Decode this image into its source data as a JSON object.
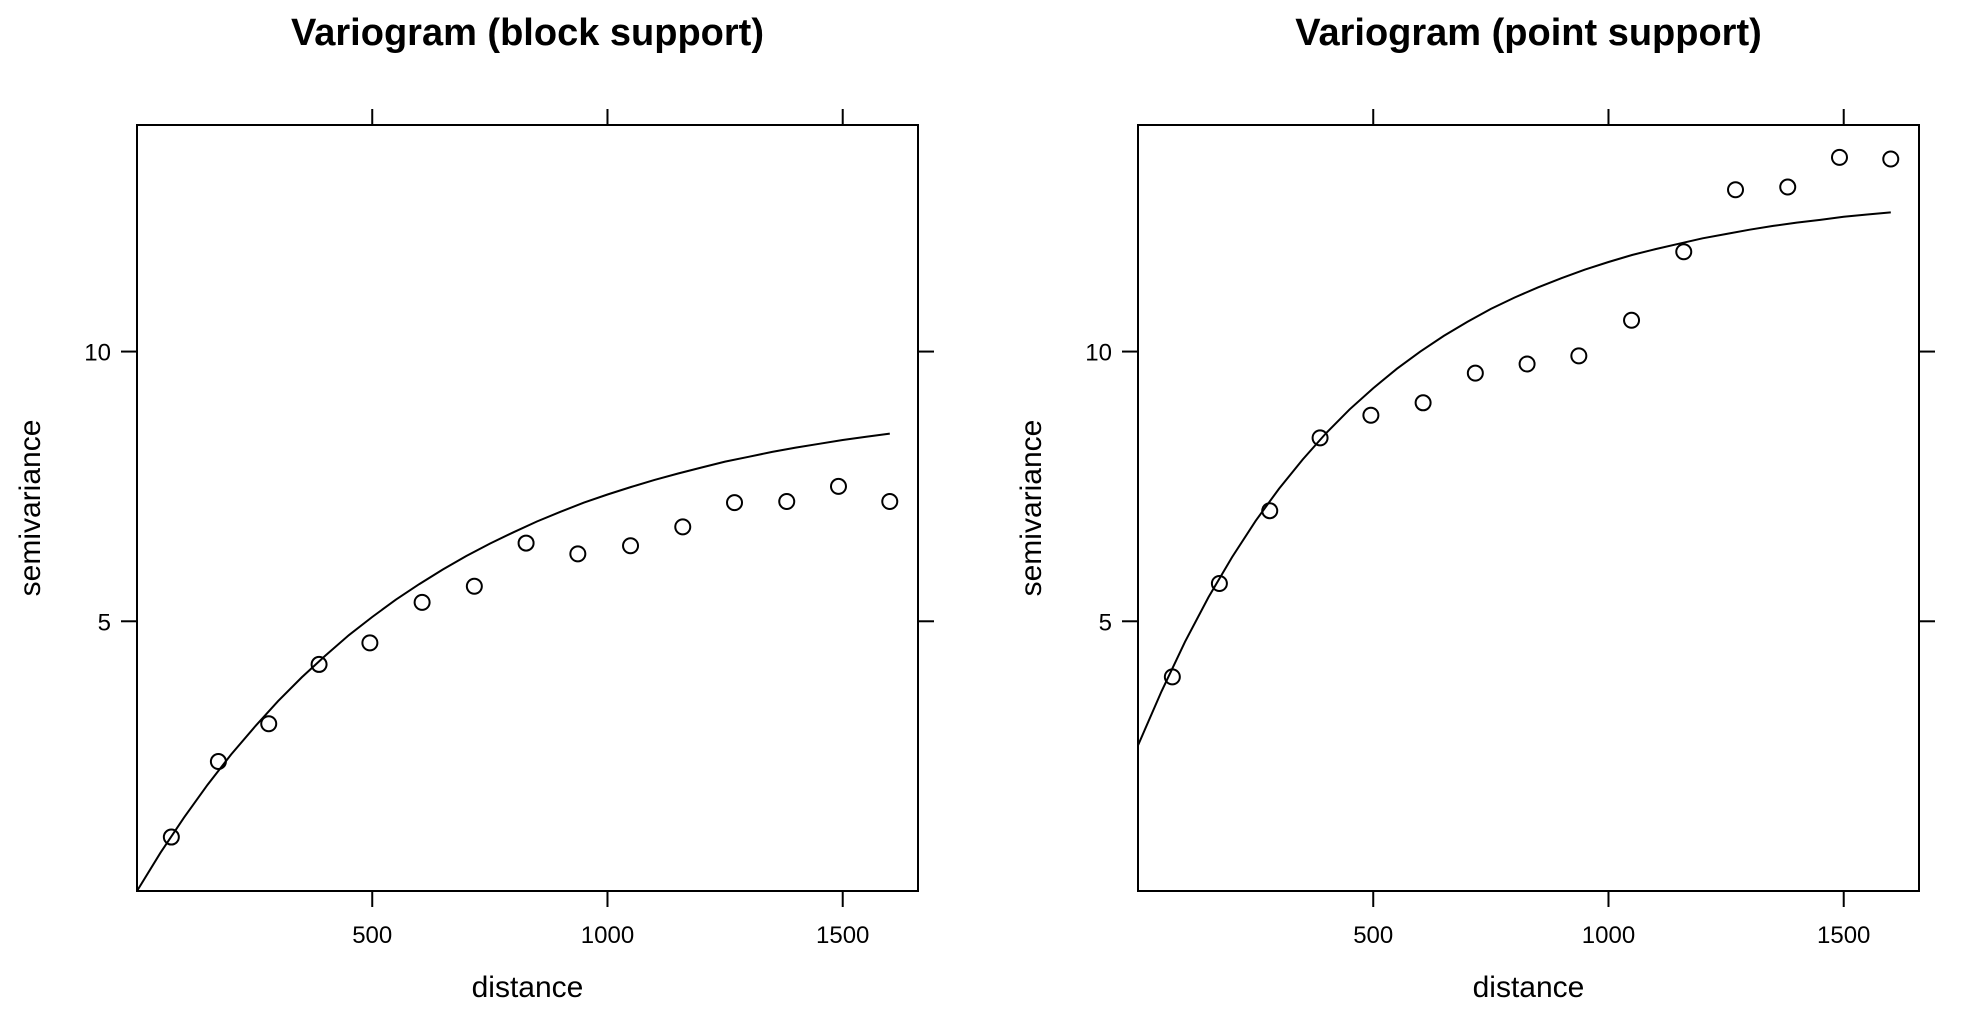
{
  "chart_data": [
    {
      "type": "scatter",
      "title": "Variogram (block support)",
      "xlabel": "distance",
      "ylabel": "semivariance",
      "xlim": [
        0,
        1660
      ],
      "ylim": [
        0,
        14.2
      ],
      "xticks": [
        500,
        1000,
        1500
      ],
      "yticks": [
        5,
        10
      ],
      "grid": false,
      "points": {
        "x": [
          73,
          173,
          280,
          387,
          495,
          606,
          717,
          827,
          937,
          1049,
          1160,
          1270,
          1381,
          1491,
          1600
        ],
        "y": [
          1.0,
          2.4,
          3.1,
          4.2,
          4.6,
          5.35,
          5.65,
          6.45,
          6.25,
          6.4,
          6.75,
          7.2,
          7.22,
          7.5,
          7.22
        ]
      },
      "model_curve": {
        "x": [
          0,
          50,
          100,
          150,
          200,
          250,
          300,
          350,
          400,
          450,
          500,
          550,
          600,
          650,
          700,
          750,
          800,
          850,
          900,
          950,
          1000,
          1050,
          1100,
          1150,
          1200,
          1250,
          1300,
          1350,
          1400,
          1450,
          1500,
          1550,
          1600
        ],
        "y": [
          0.0,
          0.71,
          1.36,
          1.97,
          2.53,
          3.04,
          3.52,
          3.96,
          4.36,
          4.74,
          5.08,
          5.4,
          5.69,
          5.96,
          6.21,
          6.44,
          6.65,
          6.85,
          7.03,
          7.2,
          7.35,
          7.49,
          7.62,
          7.74,
          7.85,
          7.96,
          8.05,
          8.14,
          8.22,
          8.29,
          8.36,
          8.42,
          8.48
        ]
      }
    },
    {
      "type": "scatter",
      "title": "Variogram (point support)",
      "xlabel": "distance",
      "ylabel": "semivariance",
      "xlim": [
        0,
        1660
      ],
      "ylim": [
        0,
        14.2
      ],
      "xticks": [
        500,
        1000,
        1500
      ],
      "yticks": [
        5,
        10
      ],
      "grid": false,
      "points": {
        "x": [
          73,
          173,
          280,
          387,
          495,
          606,
          717,
          827,
          937,
          1049,
          1160,
          1270,
          1381,
          1491,
          1600
        ],
        "y": [
          3.97,
          5.7,
          7.05,
          8.4,
          8.82,
          9.05,
          9.6,
          9.77,
          9.92,
          10.58,
          11.85,
          13.0,
          13.05,
          13.6,
          13.57
        ]
      },
      "model_curve": {
        "x": [
          0,
          50,
          100,
          150,
          200,
          250,
          300,
          350,
          400,
          450,
          500,
          550,
          600,
          650,
          700,
          750,
          800,
          850,
          900,
          950,
          1000,
          1050,
          1100,
          1150,
          1200,
          1250,
          1300,
          1350,
          1400,
          1450,
          1500,
          1550,
          1600
        ],
        "y": [
          2.7,
          3.7,
          4.62,
          5.45,
          6.19,
          6.86,
          7.46,
          8.0,
          8.49,
          8.93,
          9.32,
          9.68,
          10.0,
          10.29,
          10.55,
          10.79,
          11.0,
          11.19,
          11.36,
          11.52,
          11.66,
          11.79,
          11.9,
          12.0,
          12.1,
          12.18,
          12.26,
          12.33,
          12.39,
          12.44,
          12.5,
          12.54,
          12.58
        ]
      }
    }
  ]
}
